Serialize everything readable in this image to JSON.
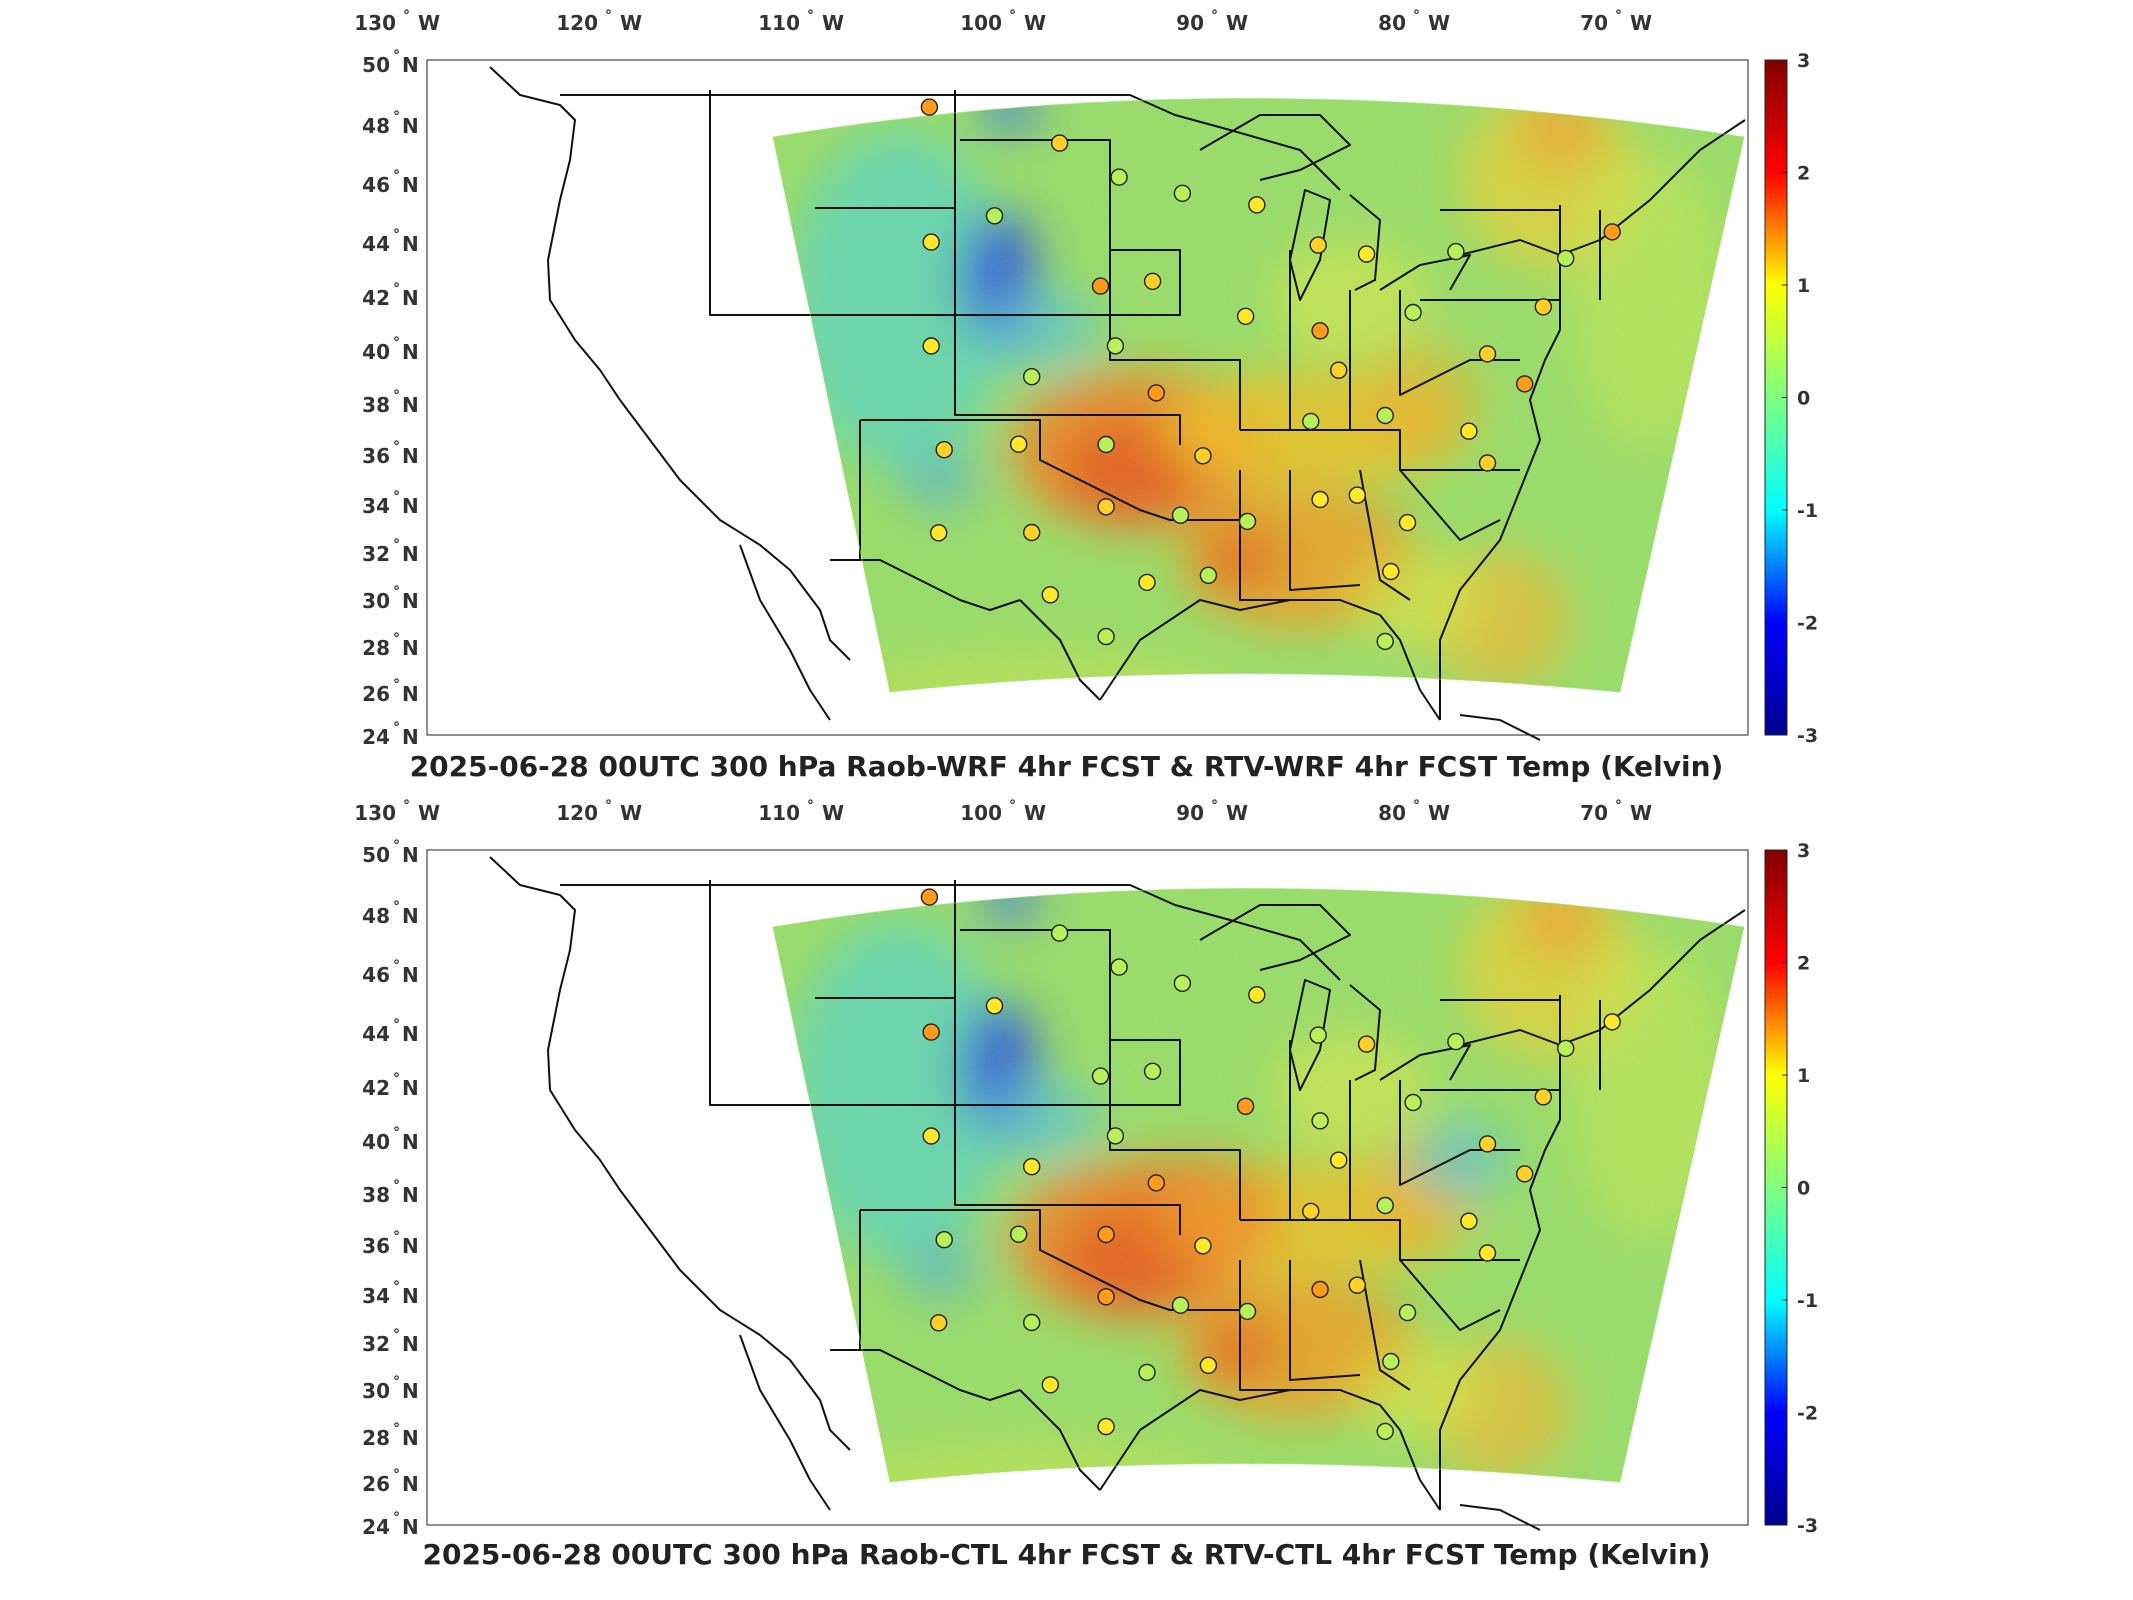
{
  "panels": [
    {
      "title": "2025-06-28 00UTC 300 hPa Raob-WRF 4hr FCST & RTV-WRF 4hr FCST Temp (Kelvin)",
      "variant": "wrf"
    },
    {
      "title": "2025-06-28 00UTC 300 hPa Raob-CTL 4hr FCST & RTV-CTL 4hr FCST Temp (Kelvin)",
      "variant": "ctl"
    }
  ],
  "lon_ticks": [
    "130",
    "120",
    "110",
    "100",
    "90",
    "80",
    "70"
  ],
  "lon_hemisphere": "W",
  "lat_ticks": [
    "50",
    "48",
    "46",
    "44",
    "42",
    "40",
    "38",
    "36",
    "34",
    "32",
    "30",
    "28",
    "26",
    "24"
  ],
  "lat_hemisphere": "N",
  "degree_symbol": "°",
  "colorbar": {
    "ticks": [
      "3",
      "2",
      "1",
      "0",
      "-1",
      "-2",
      "-3"
    ],
    "range": [
      -3,
      3
    ],
    "colormap": [
      "#00008f",
      "#0000ff",
      "#00ffff",
      "#7fff7f",
      "#ffff00",
      "#ff0000",
      "#800000"
    ]
  },
  "chart_data": {
    "type": "heatmap",
    "lon_range": [
      -134,
      -63
    ],
    "lat_range": [
      24,
      50
    ],
    "value_range": [
      -3,
      3
    ],
    "units": "Kelvin",
    "raob_stations": [
      [
        -107,
        48.2
      ],
      [
        -100,
        46.8
      ],
      [
        -96.8,
        45.5
      ],
      [
        -93.4,
        44.9
      ],
      [
        -89.4,
        44.5
      ],
      [
        -86.1,
        43.0
      ],
      [
        -83.5,
        42.7
      ],
      [
        -78.7,
        42.9
      ],
      [
        -72.8,
        42.8
      ],
      [
        -70.3,
        43.9
      ],
      [
        -74.0,
        40.9
      ],
      [
        -106.9,
        43.0
      ],
      [
        -103.5,
        44.0
      ],
      [
        -97.8,
        41.3
      ],
      [
        -95.0,
        41.5
      ],
      [
        -90.0,
        40.2
      ],
      [
        -86.0,
        39.7
      ],
      [
        -81.0,
        40.5
      ],
      [
        -77.0,
        39.0
      ],
      [
        -75.0,
        37.9
      ],
      [
        -85.0,
        38.2
      ],
      [
        -106.9,
        39.0
      ],
      [
        -101.5,
        37.8
      ],
      [
        -97.0,
        39.0
      ],
      [
        -94.8,
        37.2
      ],
      [
        -106.2,
        35.0
      ],
      [
        -102.2,
        35.2
      ],
      [
        -97.5,
        35.2
      ],
      [
        -92.3,
        34.8
      ],
      [
        -86.5,
        36.2
      ],
      [
        -82.5,
        36.5
      ],
      [
        -78.0,
        36.0
      ],
      [
        -77.0,
        34.8
      ],
      [
        -106.5,
        31.8
      ],
      [
        -101.5,
        31.8
      ],
      [
        -97.5,
        32.8
      ],
      [
        -93.5,
        32.5
      ],
      [
        -89.9,
        32.3
      ],
      [
        -86.0,
        33.2
      ],
      [
        -84.0,
        33.4
      ],
      [
        -81.3,
        32.4
      ],
      [
        -100.5,
        29.4
      ],
      [
        -97.5,
        27.8
      ],
      [
        -92.0,
        30.2
      ],
      [
        -82.2,
        30.5
      ],
      [
        -82.5,
        27.8
      ],
      [
        -95.3,
        29.9
      ]
    ]
  }
}
